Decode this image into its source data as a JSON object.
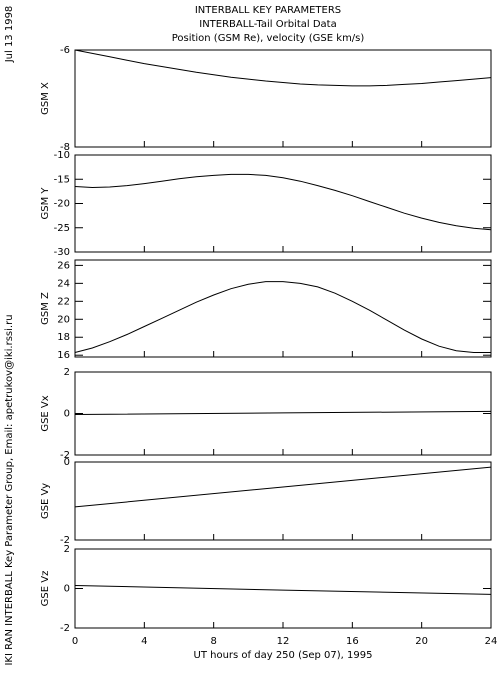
{
  "date": "Jul 13 1998",
  "credit": "IKI RAN INTERBALL Key Parameter Group, Email: apetrukov@iki.rssi.ru",
  "chart_data": [
    {
      "type": "line",
      "title": [
        "INTERBALL KEY PARAMETERS",
        "INTERBALL-Tail Orbital Data",
        "Position (GSM Re), velocity (GSE km/s)"
      ],
      "ylabel": "GSM X",
      "xlim": [
        0,
        24
      ],
      "ylim": [
        -8,
        -6
      ],
      "yticks": [
        -8,
        -6
      ],
      "x": [
        0,
        1,
        2,
        3,
        4,
        5,
        6,
        7,
        8,
        9,
        10,
        11,
        12,
        13,
        14,
        15,
        16,
        17,
        18,
        19,
        20,
        21,
        22,
        23,
        24
      ],
      "values": [
        -6.0,
        -6.07,
        -6.14,
        -6.21,
        -6.28,
        -6.34,
        -6.4,
        -6.46,
        -6.51,
        -6.56,
        -6.6,
        -6.64,
        -6.67,
        -6.7,
        -6.72,
        -6.73,
        -6.74,
        -6.74,
        -6.73,
        -6.71,
        -6.69,
        -6.66,
        -6.63,
        -6.6,
        -6.57
      ]
    },
    {
      "type": "line",
      "ylabel": "GSM Y",
      "xlim": [
        0,
        24
      ],
      "ylim": [
        -30,
        -10
      ],
      "yticks": [
        -30,
        -25,
        -20,
        -15,
        -10
      ],
      "x": [
        0,
        1,
        2,
        3,
        4,
        5,
        6,
        7,
        8,
        9,
        10,
        11,
        12,
        13,
        14,
        15,
        16,
        17,
        18,
        19,
        20,
        21,
        22,
        23,
        24
      ],
      "values": [
        -16.5,
        -16.7,
        -16.6,
        -16.3,
        -15.9,
        -15.4,
        -14.9,
        -14.5,
        -14.2,
        -14.0,
        -14.0,
        -14.2,
        -14.7,
        -15.4,
        -16.3,
        -17.3,
        -18.4,
        -19.6,
        -20.8,
        -22.0,
        -23.0,
        -23.9,
        -24.6,
        -25.1,
        -25.4
      ]
    },
    {
      "type": "line",
      "ylabel": "GSM Z",
      "xlim": [
        0,
        24
      ],
      "ylim": [
        15.8,
        26.6
      ],
      "yticks": [
        16,
        18,
        20,
        22,
        24,
        26
      ],
      "x": [
        0,
        1,
        2,
        3,
        4,
        5,
        6,
        7,
        8,
        9,
        10,
        11,
        12,
        13,
        14,
        15,
        16,
        17,
        18,
        19,
        20,
        21,
        22,
        23,
        24
      ],
      "values": [
        16.3,
        16.8,
        17.5,
        18.3,
        19.2,
        20.1,
        21.0,
        21.9,
        22.7,
        23.4,
        23.9,
        24.2,
        24.2,
        24.0,
        23.6,
        22.9,
        22.0,
        21.0,
        19.9,
        18.8,
        17.8,
        17.0,
        16.5,
        16.3,
        16.3
      ]
    },
    {
      "type": "line",
      "ylabel": "GSE Vx",
      "xlim": [
        0,
        24
      ],
      "ylim": [
        -2,
        2
      ],
      "yticks": [
        -2,
        0,
        2
      ],
      "x": [
        0,
        12,
        24
      ],
      "values": [
        -0.05,
        0.03,
        0.1
      ]
    },
    {
      "type": "line",
      "ylabel": "GSE Vy",
      "xlim": [
        0,
        24
      ],
      "ylim": [
        -2,
        0
      ],
      "yticks": [
        -2,
        0
      ],
      "x": [
        0,
        12,
        24
      ],
      "values": [
        -1.15,
        -0.64,
        -0.13
      ]
    },
    {
      "type": "line",
      "ylabel": "GSE Vz",
      "xlim": [
        0,
        24
      ],
      "ylim": [
        -2,
        2
      ],
      "yticks": [
        -2,
        0,
        2
      ],
      "x": [
        0,
        12,
        24
      ],
      "values": [
        0.15,
        -0.08,
        -0.3
      ],
      "xticks": [
        0,
        4,
        8,
        12,
        16,
        20,
        24
      ],
      "xlabel": "UT hours of day 250 (Sep 07), 1995"
    }
  ]
}
